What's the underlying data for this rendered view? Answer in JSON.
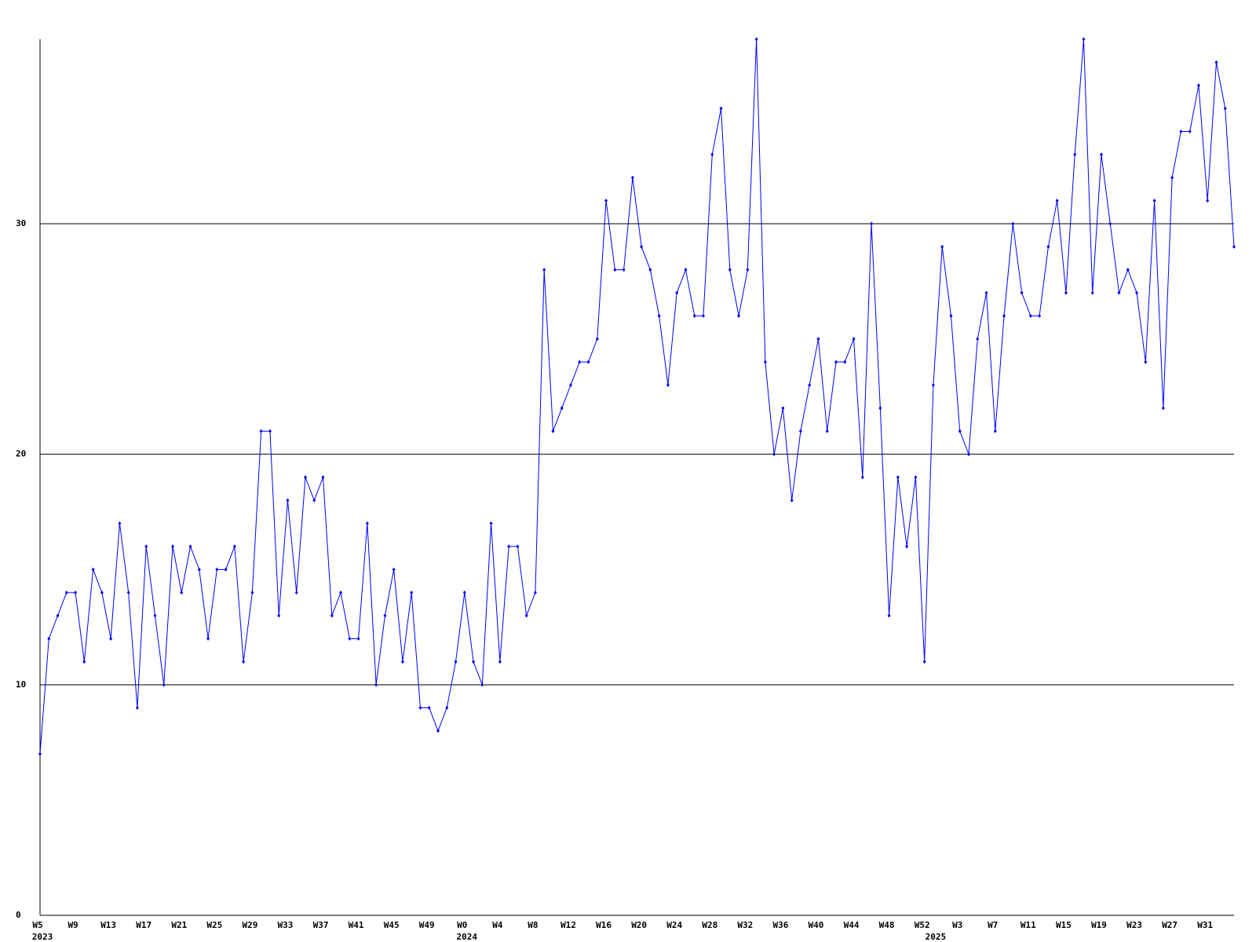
{
  "chart_data": {
    "type": "line",
    "categories": [
      "W5",
      null,
      null,
      null,
      "W9",
      null,
      null,
      null,
      "W13",
      null,
      null,
      null,
      "W17",
      null,
      null,
      null,
      "W21",
      null,
      null,
      null,
      "W25",
      null,
      null,
      null,
      "W29",
      null,
      null,
      null,
      "W33",
      null,
      null,
      null,
      "W37",
      null,
      null,
      null,
      "W41",
      null,
      null,
      null,
      "W45",
      null,
      null,
      null,
      "W49",
      null,
      null,
      null,
      "W0",
      null,
      null,
      null,
      "W4",
      null,
      null,
      null,
      "W8",
      null,
      null,
      null,
      "W12",
      null,
      null,
      null,
      "W16",
      null,
      null,
      null,
      "W20",
      null,
      null,
      null,
      "W24",
      null,
      null,
      null,
      "W28",
      null,
      null,
      null,
      "W32",
      null,
      null,
      null,
      "W36",
      null,
      null,
      null,
      "W40",
      null,
      null,
      null,
      "W44",
      null,
      null,
      null,
      "W48",
      null,
      null,
      null,
      "W52",
      null,
      null,
      null,
      "W3",
      null,
      null,
      null,
      "W7",
      null,
      null,
      null,
      "W11",
      null,
      null,
      null,
      "W15",
      null,
      null,
      null,
      "W19",
      null,
      null,
      null,
      "W23",
      null,
      null,
      null,
      "W27",
      null,
      null,
      null,
      "W31",
      null,
      null,
      null
    ],
    "year_labels": [
      "2023",
      null,
      null,
      null,
      null,
      null,
      null,
      null,
      null,
      null,
      null,
      null,
      null,
      null,
      null,
      null,
      null,
      null,
      null,
      null,
      null,
      null,
      null,
      null,
      null,
      null,
      null,
      null,
      null,
      null,
      null,
      null,
      null,
      null,
      null,
      null,
      null,
      null,
      null,
      null,
      null,
      null,
      null,
      null,
      null,
      null,
      null,
      null,
      "2024",
      null,
      null,
      null,
      null,
      null,
      null,
      null,
      null,
      null,
      null,
      null,
      null,
      null,
      null,
      null,
      null,
      null,
      null,
      null,
      null,
      null,
      null,
      null,
      null,
      null,
      null,
      null,
      null,
      null,
      null,
      null,
      null,
      null,
      null,
      null,
      null,
      null,
      null,
      null,
      null,
      null,
      null,
      null,
      null,
      null,
      null,
      null,
      null,
      null,
      null,
      null,
      null,
      "2025",
      null,
      null,
      null,
      null,
      null,
      null,
      null,
      null,
      null,
      null,
      null,
      null,
      null,
      null,
      null,
      null,
      null,
      null,
      null,
      null,
      null,
      null,
      null,
      null,
      null,
      null,
      null,
      null,
      null,
      null,
      null,
      null,
      null,
      null
    ],
    "values": [
      7,
      12,
      13,
      14,
      14,
      11,
      15,
      14,
      12,
      17,
      14,
      9,
      16,
      13,
      10,
      16,
      14,
      16,
      15,
      12,
      15,
      15,
      16,
      11,
      14,
      21,
      21,
      13,
      18,
      14,
      19,
      18,
      19,
      13,
      14,
      12,
      12,
      17,
      10,
      13,
      15,
      11,
      14,
      9,
      9,
      8,
      9,
      11,
      14,
      11,
      10,
      17,
      11,
      16,
      16,
      13,
      14,
      28,
      21,
      22,
      23,
      24,
      24,
      25,
      31,
      28,
      28,
      32,
      29,
      28,
      26,
      23,
      27,
      28,
      26,
      26,
      33,
      35,
      28,
      26,
      28,
      38,
      24,
      20,
      22,
      18,
      21,
      23,
      25,
      21,
      24,
      24,
      25,
      19,
      30,
      22,
      13,
      19,
      16,
      19,
      11,
      23,
      29,
      26,
      21,
      20,
      25,
      27,
      21,
      26,
      30,
      27,
      26,
      26,
      29,
      31,
      27,
      33,
      38,
      27,
      33,
      30,
      27,
      28,
      27,
      24,
      31,
      22,
      32,
      34,
      34,
      36,
      31,
      37,
      35,
      29
    ],
    "color": "#0000ff",
    "ylim": [
      0,
      38
    ],
    "yticks": [
      0,
      10,
      20,
      30
    ],
    "grid": true
  }
}
